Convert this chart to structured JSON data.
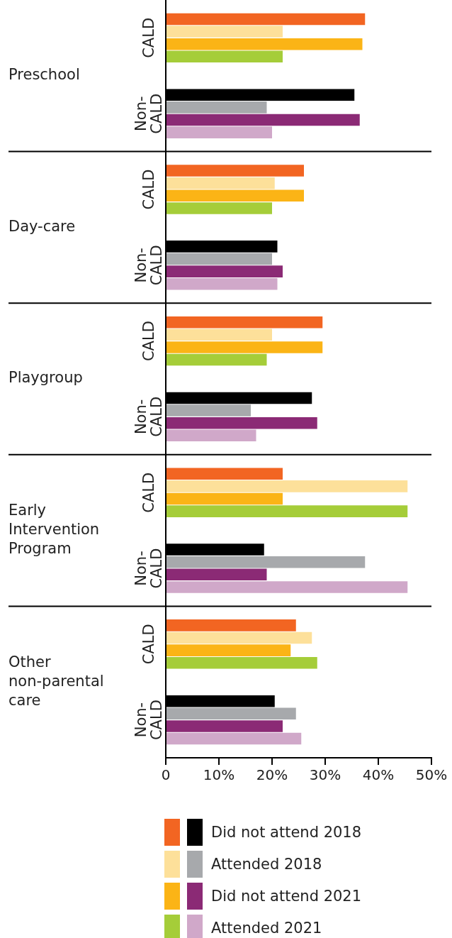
{
  "chart_data": {
    "type": "bar",
    "orientation": "horizontal",
    "categories": [
      "CALD",
      "Non-CALD",
      "CALD",
      "Non-CALD",
      "CALD",
      "Non-CALD",
      "CALD",
      "Non-CALD",
      "CALD",
      "Non-CALD"
    ],
    "annotations": [
      "Preschool",
      "Day-care",
      "Playgroup",
      "Early Intervention Program",
      "Other non-parental care"
    ],
    "series": [
      {
        "name": "Did not attend 2018",
        "colors": [
          "#f26522",
          "#000000",
          "#f26522",
          "#000000",
          "#f26522",
          "#000000",
          "#f26522",
          "#000000",
          "#f26522",
          "#000000"
        ],
        "values": [
          37.5,
          35.5,
          26,
          21,
          29.5,
          27.5,
          22,
          18.5,
          24.5,
          20.5
        ]
      },
      {
        "name": "Attended 2018",
        "colors": [
          "#fde09a",
          "#a7a9ac",
          "#fde09a",
          "#a7a9ac",
          "#fde09a",
          "#a7a9ac",
          "#fde09a",
          "#a7a9ac",
          "#fde09a",
          "#a7a9ac"
        ],
        "values": [
          22,
          19,
          20.5,
          20,
          20,
          16,
          45.5,
          37.5,
          27.5,
          24.5
        ]
      },
      {
        "name": "Did not attend 2021",
        "colors": [
          "#fbb416",
          "#8b2a75",
          "#fbb416",
          "#8b2a75",
          "#fbb416",
          "#8b2a75",
          "#fbb416",
          "#8b2a75",
          "#fbb416",
          "#8b2a75"
        ],
        "values": [
          37,
          36.5,
          26,
          22,
          29.5,
          28.5,
          22,
          19,
          23.5,
          22
        ]
      },
      {
        "name": "Attended 2021",
        "colors": [
          "#a5cd39",
          "#d0a8c9",
          "#a5cd39",
          "#d0a8c9",
          "#a5cd39",
          "#d0a8c9",
          "#a5cd39",
          "#d0a8c9",
          "#a5cd39",
          "#d0a8c9"
        ],
        "values": [
          22,
          20,
          20,
          21,
          19,
          17,
          45.5,
          45.5,
          28.5,
          25.5
        ]
      }
    ],
    "xlim": [
      0,
      50
    ],
    "xticks": [
      {
        "value": 0,
        "label": "0"
      },
      {
        "value": 10,
        "label": "10%"
      },
      {
        "value": 20,
        "label": "20%"
      },
      {
        "value": 30,
        "label": "30%"
      },
      {
        "value": 40,
        "label": "40%"
      },
      {
        "value": 50,
        "label": "50%"
      }
    ],
    "grid": false,
    "legend": "bottom"
  }
}
